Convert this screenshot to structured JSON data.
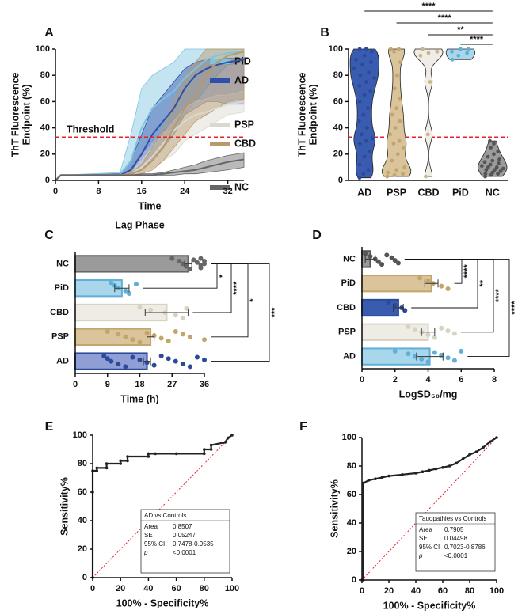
{
  "chart_data": [
    {
      "panel": "A",
      "type": "line",
      "xlabel": "Time",
      "ylabel": [
        "ThT Fluorescence",
        "Endpoint (%)"
      ],
      "xlim": [
        0,
        35
      ],
      "xticks": [
        0,
        8,
        16,
        24,
        32
      ],
      "ylim": [
        0,
        100
      ],
      "yticks": [
        0,
        20,
        40,
        60,
        80,
        100
      ],
      "threshold": {
        "value": 33,
        "label": "Threshold"
      },
      "threshold_color": "#e8202a",
      "x": [
        0,
        1,
        12,
        14,
        16,
        18,
        20,
        22,
        24,
        26,
        28,
        30,
        32,
        35
      ],
      "series": [
        {
          "name": "PiD",
          "color": "#7ec3e0",
          "values": [
            0,
            4,
            4,
            15,
            40,
            55,
            62,
            68,
            78,
            85,
            92,
            95,
            97,
            98
          ],
          "lower": [
            0,
            4,
            4,
            6,
            20,
            30,
            38,
            40,
            50,
            60,
            70,
            80,
            88,
            90
          ],
          "upper": [
            0,
            4,
            6,
            35,
            70,
            80,
            85,
            90,
            100,
            100,
            100,
            100,
            100,
            100
          ]
        },
        {
          "name": "AD",
          "color": "#2f4fa8",
          "values": [
            0,
            4,
            4,
            8,
            20,
            35,
            45,
            55,
            70,
            80,
            85,
            88,
            90,
            92
          ],
          "lower": [
            0,
            4,
            4,
            4,
            8,
            15,
            25,
            35,
            50,
            55,
            60,
            60,
            58,
            58
          ],
          "upper": [
            0,
            4,
            5,
            15,
            35,
            55,
            65,
            75,
            85,
            90,
            92,
            92,
            93,
            93
          ]
        },
        {
          "name": "PSP",
          "color": "#dcd8ce",
          "values": [
            0,
            4,
            4,
            5,
            10,
            18,
            28,
            38,
            45,
            50,
            52,
            55,
            58,
            60
          ],
          "lower": [
            0,
            4,
            4,
            4,
            6,
            10,
            15,
            20,
            30,
            35,
            40,
            45,
            50,
            52
          ],
          "upper": [
            0,
            4,
            4,
            6,
            15,
            25,
            35,
            45,
            55,
            60,
            62,
            65,
            65,
            68
          ]
        },
        {
          "name": "CBD",
          "color": "#b89a6a",
          "values": [
            0,
            4,
            4,
            5,
            8,
            15,
            25,
            40,
            55,
            65,
            80,
            90,
            95,
            98
          ],
          "lower": [
            0,
            4,
            4,
            4,
            5,
            8,
            15,
            25,
            35,
            45,
            50,
            55,
            60,
            62
          ],
          "upper": [
            0,
            4,
            4,
            6,
            12,
            25,
            40,
            60,
            80,
            90,
            100,
            100,
            100,
            100
          ]
        },
        {
          "name": "NC",
          "color": "#666666",
          "values": [
            0,
            4,
            4,
            4,
            4,
            4,
            5,
            6,
            7,
            8,
            10,
            12,
            14,
            16
          ],
          "lower": [
            0,
            4,
            4,
            4,
            4,
            4,
            4,
            4,
            5,
            5,
            6,
            7,
            8,
            10
          ],
          "upper": [
            0,
            4,
            4,
            4,
            5,
            5,
            6,
            8,
            10,
            12,
            15,
            17,
            19,
            21
          ]
        }
      ]
    },
    {
      "panel": "B",
      "type": "violin",
      "ylabel": [
        "ThT Fluorescence",
        "Endpoint (%)"
      ],
      "ylim": [
        0,
        100
      ],
      "yticks": [
        0,
        20,
        40,
        60,
        80,
        100
      ],
      "threshold": 33,
      "threshold_color": "#e8202a",
      "categories": [
        "AD",
        "PSP",
        "CBD",
        "PiD",
        "NC"
      ],
      "colors": [
        "#3a5cb0",
        "#d9c49c",
        "#f0ede7",
        "#a8d7ec",
        "#9c9c9c"
      ],
      "point_colors": [
        "#2b4a9a",
        "#c4a46a",
        "#c9b68a",
        "#5fb0d6",
        "#555555"
      ],
      "points": [
        [
          2,
          5,
          8,
          12,
          18,
          22,
          28,
          30,
          32,
          35,
          40,
          45,
          50,
          55,
          60,
          65,
          68,
          72,
          75,
          78,
          80,
          82,
          85,
          88,
          90,
          92,
          95,
          98,
          100,
          100
        ],
        [
          3,
          4,
          5,
          6,
          8,
          10,
          15,
          20,
          25,
          28,
          30,
          35,
          40,
          45,
          50,
          55,
          62,
          70,
          80,
          90,
          98,
          100,
          100
        ],
        [
          3,
          35,
          75,
          95,
          97,
          98,
          100
        ],
        [
          92,
          95,
          97,
          98,
          100,
          100
        ],
        [
          3,
          4,
          5,
          5,
          6,
          7,
          8,
          8,
          9,
          10,
          10,
          11,
          12,
          13,
          14,
          15,
          16,
          18,
          20,
          22,
          25,
          28,
          30
        ]
      ],
      "comparisons": [
        {
          "from": "AD",
          "to": "NC",
          "label": "****"
        },
        {
          "from": "PSP",
          "to": "NC",
          "label": "****"
        },
        {
          "from": "CBD",
          "to": "NC",
          "label": "**"
        },
        {
          "from": "PiD",
          "to": "NC",
          "label": "****"
        }
      ]
    },
    {
      "panel": "C",
      "type": "bar",
      "orientation": "horizontal",
      "title": "Lag Phase",
      "xlabel": "Time (h)",
      "xlim": [
        0,
        36
      ],
      "xticks": [
        0,
        9,
        18,
        27,
        36
      ],
      "categories": [
        "NC",
        "PiD",
        "CBD",
        "PSP",
        "AD"
      ],
      "values": [
        31.5,
        13,
        25.5,
        21,
        20
      ],
      "errors": [
        1,
        2,
        6,
        1,
        1
      ],
      "colors": [
        "#9a9a9a",
        "#a9d6ea",
        "#efece6",
        "#d9c49c",
        "#8f9fd6"
      ],
      "point_colors": [
        "#666666",
        "#5fb0d6",
        "#d8d2c2",
        "#c4a46a",
        "#2b4a9a"
      ],
      "points": [
        [
          27,
          29,
          30,
          31,
          32,
          33,
          34,
          35,
          35,
          35,
          36,
          36
        ],
        [
          10,
          11,
          12,
          14,
          15,
          17
        ],
        [
          18,
          21,
          25,
          28,
          30,
          31
        ],
        [
          9,
          12,
          14,
          16,
          18,
          20,
          22,
          24,
          26,
          28,
          30,
          32,
          36
        ],
        [
          8,
          9,
          10,
          12,
          14,
          16,
          18,
          20,
          22,
          24,
          26,
          28,
          30,
          32,
          34,
          36
        ]
      ],
      "comparisons": [
        {
          "from": "NC",
          "to": "PiD",
          "label": "*"
        },
        {
          "from": "NC",
          "to": "CBD",
          "label": "****"
        },
        {
          "from": "NC",
          "to": "PSP",
          "label": "*"
        },
        {
          "from": "NC",
          "to": "AD",
          "label": "***"
        }
      ]
    },
    {
      "panel": "D",
      "type": "bar",
      "orientation": "horizontal",
      "xlabel": "LogSD₅₀/mg",
      "xlim": [
        0,
        8
      ],
      "xticks": [
        0,
        2,
        4,
        6,
        8
      ],
      "categories": [
        "NC",
        "PiD",
        "CBD",
        "PSP",
        "AD"
      ],
      "values": [
        0.5,
        4.2,
        2.2,
        4,
        4.1
      ],
      "errors": [
        0.3,
        0.4,
        0.3,
        0.4,
        0.8
      ],
      "colors": [
        "#9a9a9a",
        "#d9c49c",
        "#3a5cb0",
        "#efece6",
        "#a8d7ec"
      ],
      "point_colors": [
        "#555555",
        "#c4a46a",
        "#2b4a9a",
        "#d8d2c2",
        "#5fb0d6"
      ],
      "points": [
        [
          0.2,
          0.5,
          0.8,
          1,
          1.2,
          1.5,
          1.8,
          2,
          2.2
        ],
        [
          3.5,
          4,
          4.3,
          4.8,
          5.2
        ],
        [
          1.6,
          2,
          2.4,
          2.6
        ],
        [
          2.8,
          3.2,
          3.6,
          4,
          4.4,
          4.8,
          5.2,
          5.6
        ],
        [
          2,
          2.8,
          3.2,
          3.6,
          4,
          4.4,
          4.8,
          5.2,
          5.6,
          6
        ]
      ],
      "comparisons": [
        {
          "from": "NC",
          "to": "PiD",
          "label": "****"
        },
        {
          "from": "NC",
          "to": "CBD",
          "label": "**"
        },
        {
          "from": "NC",
          "to": "PSP",
          "label": "****"
        },
        {
          "from": "NC",
          "to": "AD",
          "label": "****"
        }
      ]
    },
    {
      "panel": "E",
      "type": "line",
      "xlabel": "100% - Specificity%",
      "ylabel": "Sensitivity%",
      "xlim": [
        0,
        100
      ],
      "xticks": [
        0,
        20,
        40,
        60,
        80,
        100
      ],
      "ylim": [
        0,
        100
      ],
      "yticks": [
        0,
        20,
        40,
        60,
        80,
        100
      ],
      "reference_color": "#e8202a",
      "x": [
        0,
        0,
        0,
        3,
        3,
        10,
        10,
        20,
        20,
        25,
        25,
        40,
        40,
        45,
        60,
        80,
        80,
        85,
        85,
        95,
        97,
        100
      ],
      "series": [
        {
          "color": "#222222",
          "values": [
            0,
            60,
            75,
            75,
            77,
            77,
            80,
            80,
            82,
            82,
            85,
            85,
            87,
            87,
            87,
            87,
            90,
            90,
            93,
            95,
            98,
            100
          ]
        }
      ],
      "stats": {
        "title": "AD vs Controls",
        "rows": [
          [
            "Area",
            "0.8507"
          ],
          [
            "SE",
            "0.05247"
          ],
          [
            "95% CI",
            "0.7478-0.9535"
          ],
          [
            "p",
            "<0.0001"
          ]
        ]
      }
    },
    {
      "panel": "F",
      "type": "line",
      "xlabel": "100% - Specificity%",
      "ylabel": "Sensitivity%",
      "xlim": [
        0,
        100
      ],
      "xticks": [
        0,
        20,
        40,
        60,
        80,
        100
      ],
      "ylim": [
        0,
        100
      ],
      "yticks": [
        0,
        20,
        40,
        60,
        80,
        100
      ],
      "reference_color": "#e8202a",
      "x": [
        0,
        1,
        1,
        5,
        10,
        15,
        20,
        30,
        40,
        45,
        50,
        55,
        60,
        65,
        70,
        75,
        80,
        85,
        90,
        95,
        100
      ],
      "series": [
        {
          "color": "#222222",
          "values": [
            0,
            0,
            68,
            70,
            71,
            72,
            73,
            74,
            75,
            76,
            77,
            78,
            79,
            80,
            82,
            85,
            88,
            90,
            93,
            97,
            100
          ]
        }
      ],
      "stats": {
        "title": "Tauopathies vs Controls",
        "rows": [
          [
            "Area",
            "0.7905"
          ],
          [
            "SE",
            "0.04498"
          ],
          [
            "95% CI",
            "0.7023-0.8786"
          ],
          [
            "p",
            "<0.0001"
          ]
        ]
      }
    }
  ]
}
